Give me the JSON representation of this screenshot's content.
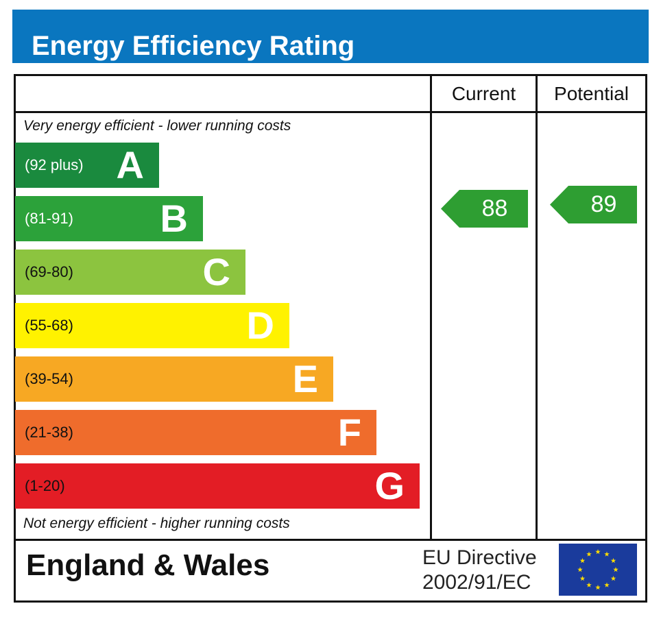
{
  "chart_data": {
    "type": "bar",
    "title": "Energy Efficiency Rating",
    "top_note": "Very energy efficient - lower running costs",
    "bottom_note": "Not energy efficient - higher running costs",
    "columns": [
      "Current",
      "Potential"
    ],
    "bands": [
      {
        "letter": "A",
        "range": "(92 plus)",
        "min": 92,
        "max": 100,
        "color": "#1a8a3e",
        "text_color": "#ffffff"
      },
      {
        "letter": "B",
        "range": "(81-91)",
        "min": 81,
        "max": 91,
        "color": "#2ca23a",
        "text_color": "#ffffff"
      },
      {
        "letter": "C",
        "range": "(69-80)",
        "min": 69,
        "max": 80,
        "color": "#8cc43f",
        "text_color": "#111111"
      },
      {
        "letter": "D",
        "range": "(55-68)",
        "min": 55,
        "max": 68,
        "color": "#fff200",
        "text_color": "#111111"
      },
      {
        "letter": "E",
        "range": "(39-54)",
        "min": 39,
        "max": 54,
        "color": "#f7a823",
        "text_color": "#111111"
      },
      {
        "letter": "F",
        "range": "(21-38)",
        "min": 21,
        "max": 38,
        "color": "#ef6c2c",
        "text_color": "#111111"
      },
      {
        "letter": "G",
        "range": "(1-20)",
        "min": 1,
        "max": 20,
        "color": "#e31d25",
        "text_color": "#111111"
      }
    ],
    "current": {
      "value": 88,
      "color": "#2e9e32"
    },
    "potential": {
      "value": 89,
      "color": "#2e9e32"
    }
  },
  "footer": {
    "region": "England & Wales",
    "directive_line1": "EU Directive",
    "directive_line2": "2002/91/EC",
    "flag": "eu-flag"
  },
  "colors": {
    "header": "#0a76bf"
  }
}
